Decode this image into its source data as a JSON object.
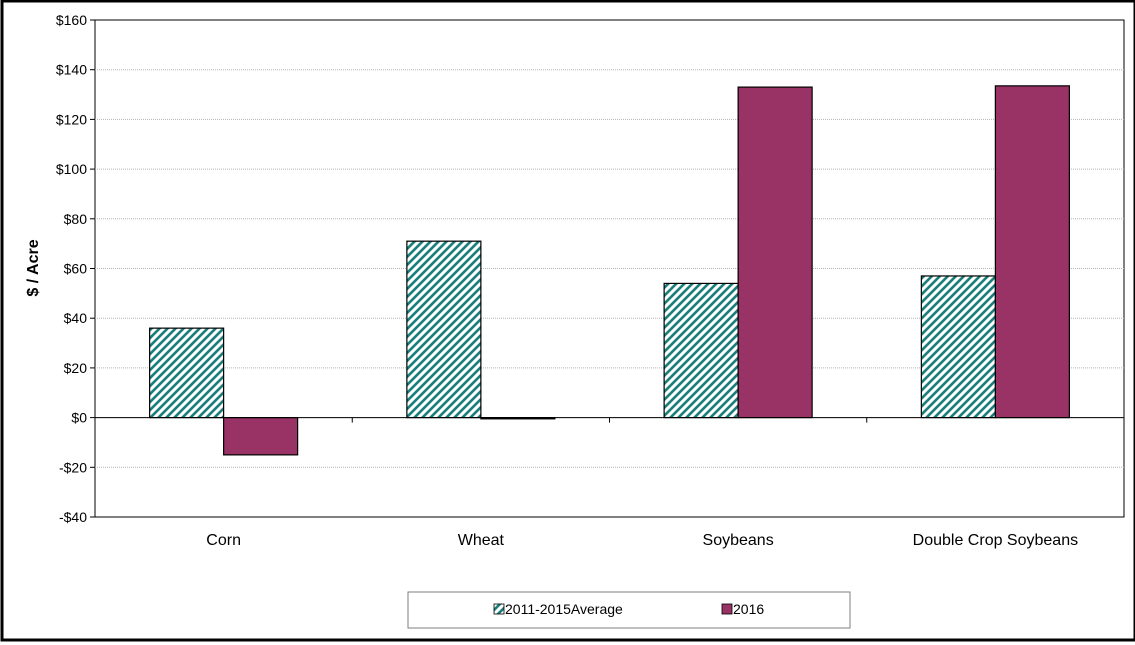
{
  "chart_data": {
    "type": "bar",
    "title": "",
    "xlabel": "",
    "ylabel": "$ / Acre",
    "categories": [
      "Corn",
      "Wheat",
      "Soybeans",
      "Double Crop Soybeans"
    ],
    "series": [
      {
        "name": "2011-2015Average",
        "values": [
          36,
          71,
          54,
          57
        ],
        "color": "#1a7f7c",
        "pattern": "diagonal-hatch"
      },
      {
        "name": "2016",
        "values": [
          -15,
          -0.5,
          133,
          133.5
        ],
        "color": "#993366",
        "pattern": "solid"
      }
    ],
    "ylim": [
      -40,
      160
    ],
    "yticks": [
      -40,
      -20,
      0,
      20,
      40,
      60,
      80,
      100,
      120,
      140,
      160
    ],
    "ytick_labels": [
      "-$40",
      "-$20",
      "$0",
      "$20",
      "$40",
      "$60",
      "$80",
      "$100",
      "$120",
      "$140",
      "$160"
    ],
    "grid": true,
    "legend_position": "bottom-center"
  }
}
